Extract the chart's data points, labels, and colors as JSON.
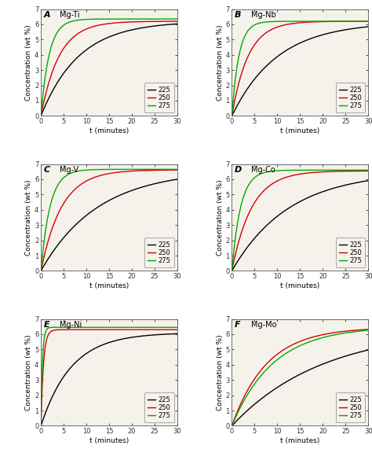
{
  "panels": [
    {
      "label": "A",
      "title": "Mg-Ti",
      "ylim": [
        0,
        7
      ],
      "yticks": [
        0,
        1,
        2,
        3,
        4,
        5,
        6,
        7
      ],
      "curves": {
        "225": {
          "color": "#000000",
          "sat": 6.2,
          "k": 0.12
        },
        "250": {
          "color": "#d40000",
          "sat": 6.2,
          "k": 0.25
        },
        "275": {
          "color": "#00aa00",
          "sat": 6.35,
          "k": 0.55
        }
      }
    },
    {
      "label": "B",
      "title": "Mg-Nb",
      "ylim": [
        0,
        7
      ],
      "yticks": [
        0,
        1,
        2,
        3,
        4,
        5,
        6,
        7
      ],
      "curves": {
        "225": {
          "color": "#000000",
          "sat": 6.15,
          "k": 0.1
        },
        "250": {
          "color": "#d40000",
          "sat": 6.2,
          "k": 0.28
        },
        "275": {
          "color": "#00aa00",
          "sat": 6.2,
          "k": 0.65
        }
      }
    },
    {
      "label": "C",
      "title": "Mg-V",
      "ylim": [
        0,
        7
      ],
      "yticks": [
        0,
        1,
        2,
        3,
        4,
        5,
        6,
        7
      ],
      "curves": {
        "225": {
          "color": "#000000",
          "sat": 6.6,
          "k": 0.08
        },
        "250": {
          "color": "#d40000",
          "sat": 6.62,
          "k": 0.22
        },
        "275": {
          "color": "#00aa00",
          "sat": 6.65,
          "k": 0.5
        }
      }
    },
    {
      "label": "D",
      "title": "Mg-Co",
      "ylim": [
        0,
        7
      ],
      "yticks": [
        0,
        1,
        2,
        3,
        4,
        5,
        6,
        7
      ],
      "curves": {
        "225": {
          "color": "#000000",
          "sat": 6.5,
          "k": 0.08
        },
        "250": {
          "color": "#d40000",
          "sat": 6.55,
          "k": 0.23
        },
        "275": {
          "color": "#00aa00",
          "sat": 6.6,
          "k": 0.52
        }
      }
    },
    {
      "label": "E",
      "title": "Mg-Ni",
      "ylim": [
        0,
        7
      ],
      "yticks": [
        0,
        1,
        2,
        3,
        4,
        5,
        6,
        7
      ],
      "curves": {
        "225": {
          "color": "#000000",
          "sat": 6.1,
          "k": 0.15
        },
        "250": {
          "color": "#d40000",
          "sat": 6.3,
          "k": 1.8
        },
        "275": {
          "color": "#00aa00",
          "sat": 6.45,
          "k": 3.0
        }
      }
    },
    {
      "label": "F",
      "title": "Mg-Mo",
      "ylim": [
        0,
        7
      ],
      "yticks": [
        0,
        1,
        2,
        3,
        4,
        5,
        6,
        7
      ],
      "curves": {
        "225": {
          "color": "#000000",
          "sat": 6.4,
          "k": 0.05
        },
        "250": {
          "color": "#d40000",
          "sat": 6.45,
          "k": 0.13
        },
        "275": {
          "color": "#00aa00",
          "sat": 6.5,
          "k": 0.11
        }
      }
    }
  ],
  "xlabel": "t (minutes)",
  "ylabel": "Concentration (wt %)",
  "xlim": [
    0,
    30
  ],
  "xticks": [
    0,
    5,
    10,
    15,
    20,
    25,
    30
  ],
  "legend_labels": [
    "225",
    "250",
    "275"
  ],
  "legend_colors": [
    "#000000",
    "#d40000",
    "#00aa00"
  ],
  "bg_color": "#ffffff",
  "plot_bg": "#f5f2ec",
  "line_width": 1.0,
  "label_fontsize": 6.5,
  "tick_fontsize": 6,
  "panel_label_fontsize": 8,
  "panel_title_fontsize": 7,
  "legend_fontsize": 6
}
